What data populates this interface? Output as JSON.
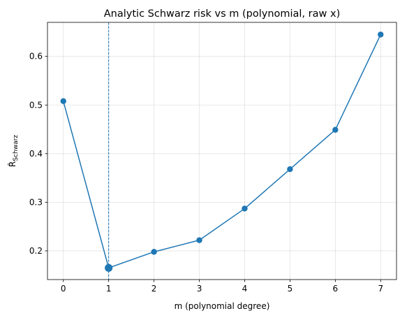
{
  "chart_data": {
    "type": "line",
    "title": "Analytic Schwarz risk vs m (polynomial, raw x)",
    "xlabel": "m (polynomial degree)",
    "ylabel_main": "R̂",
    "ylabel_sub": "Schwarz",
    "x": [
      0,
      1,
      2,
      3,
      4,
      5,
      6,
      7
    ],
    "series": [
      {
        "values": [
          0.508,
          0.165,
          0.198,
          0.222,
          0.287,
          0.368,
          0.449,
          0.645
        ]
      }
    ],
    "xlim": [
      -0.35,
      7.35
    ],
    "ylim": [
      0.141,
      0.67
    ],
    "xticks": [
      0,
      1,
      2,
      3,
      4,
      5,
      6,
      7
    ],
    "yticks": [
      0.2,
      0.3,
      0.4,
      0.5,
      0.6
    ],
    "xtick_labels": [
      "0",
      "1",
      "2",
      "3",
      "4",
      "5",
      "6",
      "7"
    ],
    "ytick_labels": [
      "0.2",
      "0.3",
      "0.4",
      "0.5",
      "0.6"
    ],
    "vline_x": 1,
    "highlight_x": 1,
    "grid": true,
    "line_color": "#1f77b4"
  }
}
